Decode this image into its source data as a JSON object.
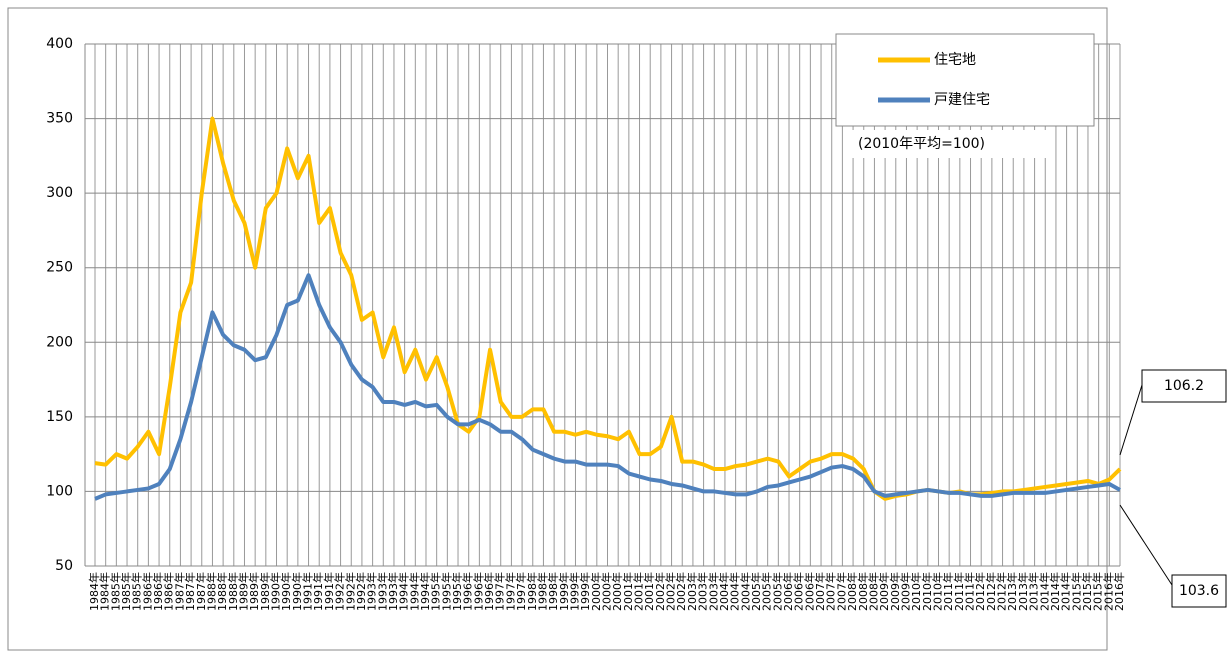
{
  "chart_data": {
    "type": "line",
    "categories": [
      "1984年",
      "1984年",
      "1985年",
      "1985年",
      "1985年",
      "1986年",
      "1986年",
      "1986年",
      "1987年",
      "1987年",
      "1987年",
      "1988年",
      "1988年",
      "1988年",
      "1989年",
      "1989年",
      "1989年",
      "1990年",
      "1990年",
      "1990年",
      "1991年",
      "1991年",
      "1991年",
      "1992年",
      "1992年",
      "1992年",
      "1993年",
      "1993年",
      "1993年",
      "1994年",
      "1994年",
      "1994年",
      "1995年",
      "1995年",
      "1995年",
      "1996年",
      "1996年",
      "1996年",
      "1997年",
      "1997年",
      "1997年",
      "1998年",
      "1998年",
      "1998年",
      "1999年",
      "1999年",
      "1999年",
      "2000年",
      "2000年",
      "2000年",
      "2001年",
      "2001年",
      "2001年",
      "2002年",
      "2002年",
      "2002年",
      "2003年",
      "2003年",
      "2003年",
      "2004年",
      "2004年",
      "2004年",
      "2005年",
      "2005年",
      "2005年",
      "2006年",
      "2006年",
      "2006年",
      "2007年",
      "2007年",
      "2007年",
      "2008年",
      "2008年",
      "2008年",
      "2009年",
      "2009年",
      "2009年",
      "2010年",
      "2010年",
      "2010年",
      "2011年",
      "2011年",
      "2011年",
      "2012年",
      "2012年",
      "2012年",
      "2013年",
      "2013年",
      "2013年",
      "2014年",
      "2014年",
      "2014年",
      "2015年",
      "2015年",
      "2015年",
      "2016年",
      "2016年"
    ],
    "series": [
      {
        "name": "住宅地",
        "color": "#ffc000",
        "values": [
          119,
          118,
          125,
          122,
          130,
          140,
          125,
          170,
          220,
          240,
          300,
          350,
          320,
          295,
          280,
          250,
          290,
          300,
          330,
          310,
          325,
          280,
          290,
          260,
          245,
          215,
          220,
          190,
          210,
          180,
          195,
          175,
          190,
          170,
          145,
          140,
          150,
          195,
          160,
          150,
          150,
          155,
          155,
          140,
          140,
          138,
          140,
          138,
          137,
          135,
          140,
          125,
          125,
          130,
          150,
          120,
          120,
          118,
          115,
          115,
          117,
          118,
          120,
          122,
          120,
          110,
          115,
          120,
          122,
          125,
          125,
          122,
          115,
          100,
          95,
          97,
          98,
          100,
          101,
          100,
          99,
          100,
          98,
          98,
          99,
          100,
          100,
          101,
          102,
          103,
          104,
          105,
          106,
          107,
          105,
          108,
          115
        ]
      },
      {
        "name": "戸建住宅",
        "color": "#4f81bd",
        "values": [
          95,
          98,
          99,
          100,
          101,
          102,
          105,
          115,
          135,
          160,
          190,
          220,
          205,
          198,
          195,
          188,
          190,
          205,
          225,
          228,
          245,
          225,
          210,
          200,
          185,
          175,
          170,
          160,
          160,
          158,
          160,
          157,
          158,
          150,
          145,
          145,
          148,
          145,
          140,
          140,
          135,
          128,
          125,
          122,
          120,
          120,
          118,
          118,
          118,
          117,
          112,
          110,
          108,
          107,
          105,
          104,
          102,
          100,
          100,
          99,
          98,
          98,
          100,
          103,
          104,
          106,
          108,
          110,
          113,
          116,
          117,
          115,
          110,
          100,
          97,
          98,
          99,
          100,
          101,
          100,
          99,
          99,
          98,
          97,
          97,
          98,
          99,
          99,
          99,
          99,
          100,
          101,
          102,
          103,
          104,
          105,
          101
        ]
      }
    ],
    "ylim": [
      50,
      400
    ],
    "yticks": [
      50,
      100,
      150,
      200,
      250,
      300,
      350,
      400
    ],
    "grid": true,
    "legend": "upper right",
    "annotations": [
      "(2010年平均=100)",
      "106.2",
      "103.6"
    ]
  }
}
